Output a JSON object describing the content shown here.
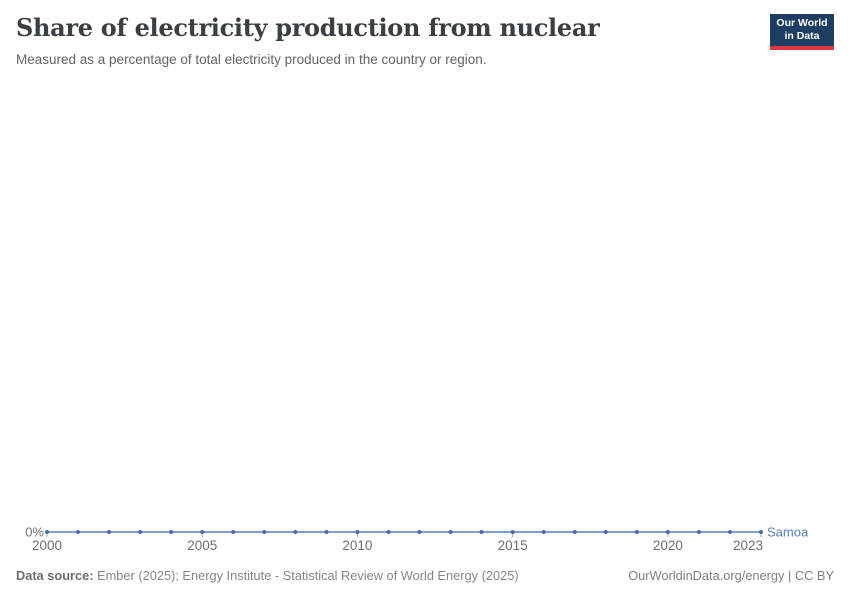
{
  "header": {
    "title": "Share of electricity production from nuclear",
    "subtitle": "Measured as a percentage of total electricity produced in the country or region.",
    "logo": {
      "line1": "Our World",
      "line2": "in Data",
      "bg_color": "#1d3d63",
      "bar_color": "#d73a42"
    }
  },
  "chart_data": {
    "type": "line",
    "title": "Share of electricity production from nuclear",
    "subtitle": "Measured as a percentage of total electricity produced in the country or region.",
    "x": [
      2000,
      2001,
      2002,
      2003,
      2004,
      2005,
      2006,
      2007,
      2008,
      2009,
      2010,
      2011,
      2012,
      2013,
      2014,
      2015,
      2016,
      2017,
      2018,
      2019,
      2020,
      2021,
      2022,
      2023
    ],
    "series": [
      {
        "name": "Samoa",
        "color": "#577eb5",
        "marker_color": "#4a6ba8",
        "values": [
          0,
          0,
          0,
          0,
          0,
          0,
          0,
          0,
          0,
          0,
          0,
          0,
          0,
          0,
          0,
          0,
          0,
          0,
          0,
          0,
          0,
          0,
          0,
          0
        ]
      }
    ],
    "x_ticks": [
      2000,
      2005,
      2010,
      2015,
      2020,
      2023
    ],
    "y_axis_labels": [
      "0%"
    ],
    "ylim": [
      0,
      1
    ],
    "grid": false,
    "legend_position": "end-of-line",
    "axis_text_color": "#6e6e6e",
    "tick_color": "#a8a8a8"
  },
  "footer": {
    "source_label": "Data source:",
    "source_text": " Ember (2025); Energy Institute - Statistical Review of World Energy (2025)",
    "right_text": "OurWorldinData.org/energy | CC BY"
  }
}
